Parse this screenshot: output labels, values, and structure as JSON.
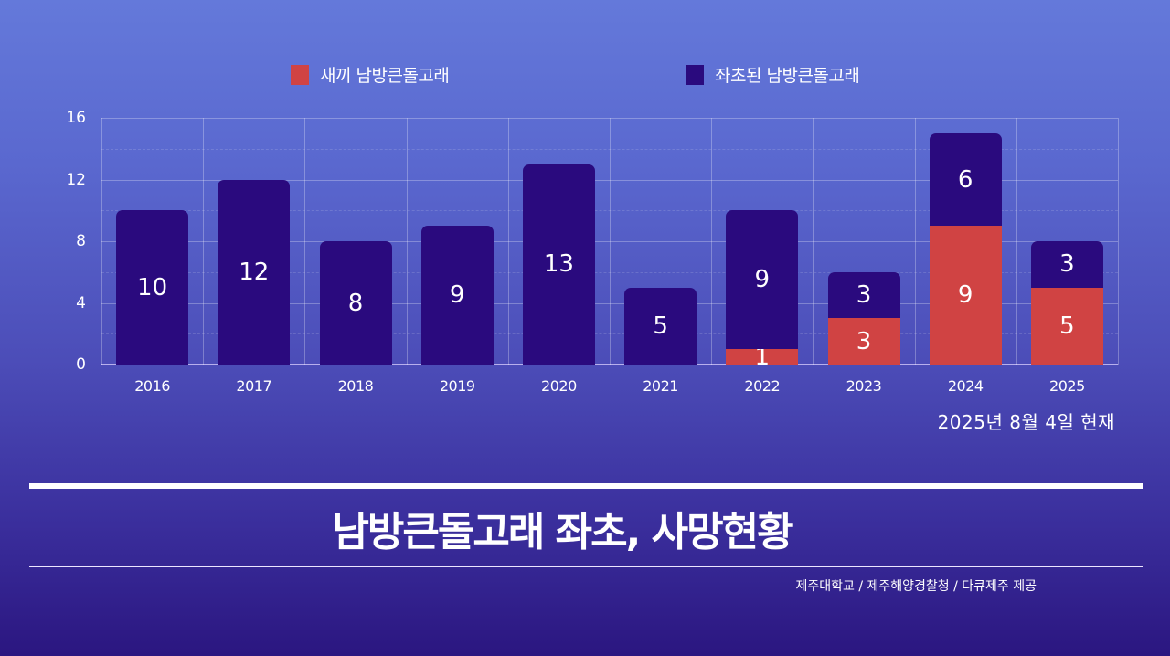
{
  "legend": {
    "items": [
      {
        "label": "새끼 남방큰돌고래",
        "color": "#D04343"
      },
      {
        "label": "좌초된 남방큰돌고래",
        "color": "#2A0A7E"
      }
    ]
  },
  "axis": {
    "y_ticks": [
      "0",
      "4",
      "8",
      "12",
      "16"
    ],
    "x_ticks": [
      "2016",
      "2017",
      "2018",
      "2019",
      "2020",
      "2021",
      "2022",
      "2023",
      "2024",
      "2025"
    ]
  },
  "date_note": "2025년 8월 4일 현재",
  "title": "남방큰돌고래 좌초, 사망현황",
  "credit": "제주대학교 / 제주해양경찰청 / 다큐제주 제공",
  "colors": {
    "calf": "#D04343",
    "stranded": "#2A0A7E",
    "bg_top": "#6479DA",
    "bg_bottom": "#2B1680"
  },
  "chart_data": {
    "type": "bar",
    "stacked": true,
    "title": "남방큰돌고래 좌초, 사망현황",
    "subtitle": "2025년 8월 4일 현재",
    "xlabel": "",
    "ylabel": "",
    "categories": [
      "2016",
      "2017",
      "2018",
      "2019",
      "2020",
      "2021",
      "2022",
      "2023",
      "2024",
      "2025"
    ],
    "series": [
      {
        "name": "새끼 남방큰돌고래",
        "color": "#D04343",
        "values": [
          0,
          0,
          0,
          0,
          0,
          0,
          1,
          3,
          9,
          5
        ]
      },
      {
        "name": "좌초된 남방큰돌고래",
        "color": "#2A0A7E",
        "values": [
          10,
          12,
          8,
          9,
          13,
          5,
          9,
          3,
          6,
          3
        ]
      }
    ],
    "totals": [
      10,
      12,
      8,
      9,
      13,
      5,
      10,
      6,
      15,
      8
    ],
    "ylim": [
      0,
      16
    ],
    "y_ticks": [
      0,
      4,
      8,
      12,
      16
    ],
    "grid": true,
    "legend_position": "top",
    "source": "제주대학교 / 제주해양경찰청 / 다큐제주 제공"
  }
}
